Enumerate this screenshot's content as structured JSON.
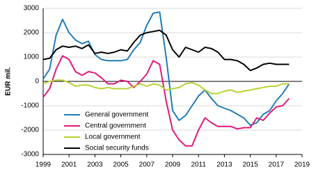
{
  "chart_data": {
    "type": "line",
    "y_label": "EUR mil.",
    "x": [
      1999,
      1999.5,
      2000,
      2000.5,
      2001,
      2001.5,
      2002,
      2002.5,
      2003,
      2003.5,
      2004,
      2004.5,
      2005,
      2005.5,
      2006,
      2006.5,
      2007,
      2007.5,
      2008,
      2008.5,
      2009,
      2009.5,
      2010,
      2010.5,
      2011,
      2011.5,
      2012,
      2012.5,
      2013,
      2013.5,
      2014,
      2014.5,
      2015,
      2015.5,
      2016,
      2016.5,
      2017,
      2017.5,
      2018
    ],
    "series": [
      {
        "name": "General government",
        "color": "#1f7bb6",
        "values": [
          100,
          500,
          1900,
          2550,
          2000,
          1700,
          1550,
          1650,
          1100,
          900,
          850,
          850,
          850,
          900,
          1300,
          1600,
          2300,
          2800,
          2850,
          1000,
          -1200,
          -1600,
          -1400,
          -1000,
          -600,
          -350,
          -700,
          -1000,
          -1100,
          -1200,
          -1350,
          -1500,
          -1800,
          -1700,
          -1350,
          -1200,
          -800,
          -500,
          -100
        ]
      },
      {
        "name": "Central government",
        "color": "#e0197a",
        "values": [
          -650,
          -300,
          500,
          1050,
          900,
          400,
          250,
          400,
          350,
          150,
          -100,
          -100,
          50,
          0,
          -250,
          0,
          300,
          850,
          700,
          -800,
          -2000,
          -2400,
          -2650,
          -2650,
          -2000,
          -1500,
          -1700,
          -1850,
          -1850,
          -1850,
          -1950,
          -1900,
          -1900,
          -1500,
          -1600,
          -1300,
          -1050,
          -1000,
          -700
        ]
      },
      {
        "name": "Local government",
        "color": "#b5d334",
        "values": [
          -100,
          0,
          50,
          50,
          -50,
          -200,
          -150,
          -150,
          -250,
          -300,
          -250,
          -300,
          -300,
          -300,
          -200,
          -100,
          -200,
          -100,
          -150,
          -350,
          -300,
          -250,
          -100,
          -50,
          -150,
          -350,
          -500,
          -500,
          -400,
          -350,
          -450,
          -400,
          -350,
          -300,
          -250,
          -200,
          -200,
          -100,
          -100
        ]
      },
      {
        "name": "Social security funds",
        "color": "#000000",
        "values": [
          900,
          950,
          1300,
          1450,
          1400,
          1450,
          1350,
          1500,
          1150,
          1200,
          1150,
          1200,
          1300,
          1250,
          1600,
          1900,
          2000,
          2050,
          2100,
          1900,
          1300,
          1000,
          1400,
          1300,
          1200,
          1400,
          1350,
          1200,
          900,
          900,
          850,
          700,
          450,
          550,
          700,
          750,
          700,
          700,
          700
        ]
      }
    ],
    "xlim": [
      1999,
      2019
    ],
    "xticks": [
      1999,
      2001,
      2003,
      2005,
      2007,
      2009,
      2011,
      2013,
      2015,
      2017,
      2019
    ],
    "ylim": [
      -3000,
      3000
    ],
    "yticks": [
      -3000,
      -2000,
      -1000,
      0,
      1000,
      2000,
      3000
    ],
    "grid": true,
    "legend": "lower-left"
  }
}
